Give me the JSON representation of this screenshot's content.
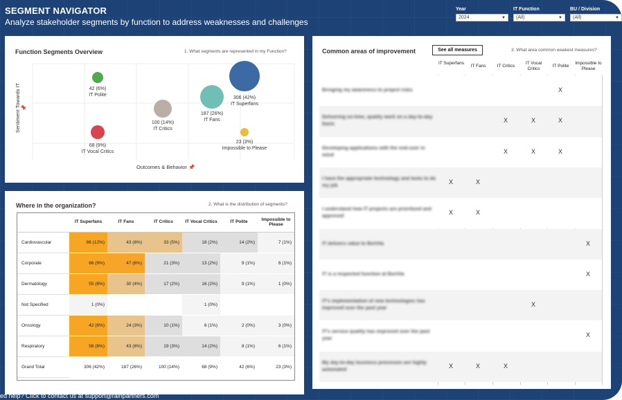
{
  "header": {
    "title": "SEGMENT NAVIGATOR",
    "subtitle": "Analyze stakeholder segments by function to address weaknesses and challenges"
  },
  "filters": [
    {
      "label": "Year",
      "value": "2024"
    },
    {
      "label": "IT Function",
      "value": "(All)"
    },
    {
      "label": "BU / Division",
      "value": "(All)"
    }
  ],
  "function_segments": {
    "title": "Function Segments Overview",
    "question": "1. What segments are represented in my Function?",
    "xlabel": "Outcomes & Behavior",
    "ylabel": "Sentiment Towards IT",
    "pin_icon": "pin-icon",
    "chart_data": {
      "type": "scatter",
      "xlabel": "Outcomes & Behavior",
      "ylabel": "Sentiment Towards IT",
      "series": [
        {
          "name": "IT Polite",
          "count": 42,
          "pct": "6%",
          "x": 0.15,
          "y": 0.9,
          "color": "#4fa94d"
        },
        {
          "name": "IT Vocal Critics",
          "count": 68,
          "pct": "9%",
          "x": 0.15,
          "y": 0.25,
          "color": "#d9444e"
        },
        {
          "name": "IT Critics",
          "count": 100,
          "pct": "14%",
          "x": 0.5,
          "y": 0.55,
          "color": "#bbaea6"
        },
        {
          "name": "IT Fans",
          "count": 187,
          "pct": "26%",
          "x": 0.75,
          "y": 0.7,
          "color": "#6fbfb6"
        },
        {
          "name": "IT Superfans",
          "count": 306,
          "pct": "42%",
          "x": 0.9,
          "y": 0.88,
          "color": "#3b6aa4"
        },
        {
          "name": "Impossible to Please",
          "count": 23,
          "pct": "3%",
          "x": 0.9,
          "y": 0.25,
          "color": "#e8bf36"
        }
      ]
    },
    "labels": [
      {
        "value": "42 (6%)",
        "name": "IT Polite"
      },
      {
        "value": "68 (9%)",
        "name": "IT Vocal Critics"
      },
      {
        "value": "100 (14%)",
        "name": "IT Critics"
      },
      {
        "value": "187 (26%)",
        "name": "IT Fans"
      },
      {
        "value": "306 (42%)",
        "name": "IT Superfans"
      },
      {
        "value": "23 (3%)",
        "name": "Impossible to Please"
      }
    ]
  },
  "where": {
    "title": "Where in the organization?",
    "question": "2. What is the distribution of segments?",
    "columns": [
      "IT Superfans",
      "IT Fans",
      "IT Critics",
      "IT Vocal Critics",
      "IT Polite",
      "Impossible to Please"
    ],
    "rows": [
      {
        "label": "Cardiovascular",
        "cells": [
          "86 (12%)",
          "43 (6%)",
          "33 (5%)",
          "18 (2%)",
          "14 (2%)",
          "7 (1%)"
        ]
      },
      {
        "label": "Corporate",
        "cells": [
          "66 (9%)",
          "47 (6%)",
          "21 (3%)",
          "13 (2%)",
          "9 (1%)",
          "6 (1%)"
        ]
      },
      {
        "label": "Dermatology",
        "cells": [
          "55 (8%)",
          "30 (4%)",
          "17 (2%)",
          "16 (2%)",
          "9 (1%)",
          "1 (0%)"
        ]
      },
      {
        "label": "Not Specified",
        "cells": [
          "1 (0%)",
          "",
          "",
          "1 (0%)",
          "",
          ""
        ]
      },
      {
        "label": "Oncology",
        "cells": [
          "42 (6%)",
          "24 (3%)",
          "10 (1%)",
          "6 (1%)",
          "2 (0%)",
          "3 (0%)"
        ]
      },
      {
        "label": "Respiratory",
        "cells": [
          "56 (8%)",
          "43 (6%)",
          "19 (3%)",
          "14 (2%)",
          "8 (1%)",
          "6 (1%)"
        ]
      }
    ],
    "grand_total": {
      "label": "Grand Total",
      "cells": [
        "306 (42%)",
        "187 (26%)",
        "100 (14%)",
        "68 (9%)",
        "42 (6%)",
        "23 (3%)"
      ]
    }
  },
  "improvement": {
    "title": "Common areas of improvement",
    "button": "See all measures",
    "question": "3. What area common weakest measures?",
    "columns": [
      "IT Superfans",
      "IT Fans",
      "IT Critics",
      "IT Vocal Critics",
      "IT Polite",
      "Impossible to Please"
    ],
    "mark": "X",
    "rows": [
      {
        "label": "Bringing my awareness to project risks",
        "marks": [
          false,
          false,
          false,
          false,
          true,
          false
        ]
      },
      {
        "label": "Delivering on-time, quality work on a day-to-day basis",
        "marks": [
          false,
          false,
          true,
          true,
          true,
          false
        ]
      },
      {
        "label": "Developing applications with the end-user in mind",
        "marks": [
          false,
          false,
          true,
          true,
          true,
          false
        ]
      },
      {
        "label": "I have the appropriate technology and tools to do my job",
        "marks": [
          true,
          true,
          false,
          false,
          false,
          false
        ]
      },
      {
        "label": "I understand how IT projects are prioritized and approved",
        "marks": [
          true,
          true,
          false,
          false,
          false,
          false
        ]
      },
      {
        "label": "IT delivers value to BioVita",
        "marks": [
          false,
          false,
          false,
          false,
          false,
          true
        ]
      },
      {
        "label": "IT is a respected function at BioVita",
        "marks": [
          false,
          false,
          false,
          false,
          false,
          true
        ]
      },
      {
        "label": "IT's implementation of new technologies has improved over the past year",
        "marks": [
          false,
          false,
          false,
          true,
          false,
          false
        ]
      },
      {
        "label": "IT's service quality has improved over the past year",
        "marks": [
          false,
          false,
          false,
          false,
          false,
          true
        ]
      },
      {
        "label": "My day-to-day business processes are highly automated",
        "marks": [
          true,
          true,
          true,
          false,
          false,
          false
        ]
      }
    ]
  },
  "footer": {
    "text": "ed help? Click to contact us at support@rainpartners.com"
  }
}
